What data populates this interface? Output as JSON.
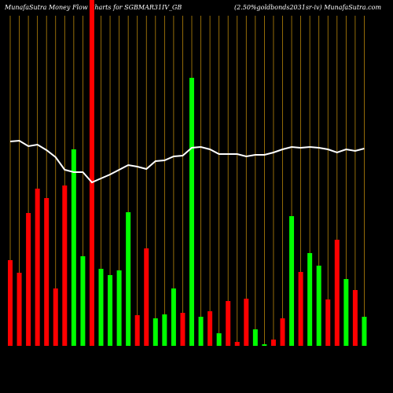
{
  "chart_data": {
    "type": "bar",
    "title": "MunafaSutra  Money Flow  Charts for SGBMAR31IV_GB",
    "subtitle": "(2.50%goldbonds2031sr-iv) MunafaSutra.com",
    "categories": [
      null,
      null,
      null,
      null,
      null,
      null,
      null,
      null,
      null,
      null,
      null,
      null,
      null,
      null,
      null,
      null,
      null,
      null,
      null,
      null,
      null,
      null,
      null,
      null,
      null,
      null,
      null,
      null,
      null,
      null,
      null,
      null,
      null,
      null,
      null,
      null,
      null,
      null,
      null,
      null
    ],
    "values": [
      109,
      93,
      169,
      200,
      188,
      73,
      204,
      250,
      114,
      440,
      98,
      90,
      96,
      170,
      39,
      124,
      35,
      40,
      73,
      42,
      341,
      37,
      44,
      16,
      57,
      5,
      60,
      21,
      2,
      8,
      35,
      165,
      94,
      118,
      102,
      59,
      135,
      85,
      71,
      37
    ],
    "colors": [
      "#ff0000",
      "#ff0000",
      "#ff0000",
      "#ff0000",
      "#ff0000",
      "#ff0000",
      "#ff0000",
      "#00ff00",
      "#00ff00",
      "#ff0000",
      "#00ff00",
      "#00ff00",
      "#00ff00",
      "#00ff00",
      "#ff0000",
      "#ff0000",
      "#00ff00",
      "#00ff00",
      "#00ff00",
      "#ff0000",
      "#00ff00",
      "#00ff00",
      "#ff0000",
      "#00ff00",
      "#ff0000",
      "#ff0000",
      "#ff0000",
      "#00ff00",
      "#00ff00",
      "#ff0000",
      "#ff0000",
      "#00ff00",
      "#ff0000",
      "#00ff00",
      "#00ff00",
      "#ff0000",
      "#ff0000",
      "#00ff00",
      "#ff0000",
      "#00ff00"
    ],
    "line": {
      "color": "#ffffff",
      "values": [
        260,
        261,
        254,
        256,
        249,
        240,
        224,
        221,
        221,
        208,
        213,
        218,
        224,
        230,
        228,
        225,
        235,
        236,
        241,
        242,
        252,
        253,
        250,
        244,
        244,
        244,
        241,
        243,
        243,
        246,
        250,
        253,
        252,
        253,
        252,
        250,
        246,
        250,
        248,
        251
      ]
    },
    "grid_color": "#b8860b",
    "ylim": [
      0,
      440
    ]
  }
}
